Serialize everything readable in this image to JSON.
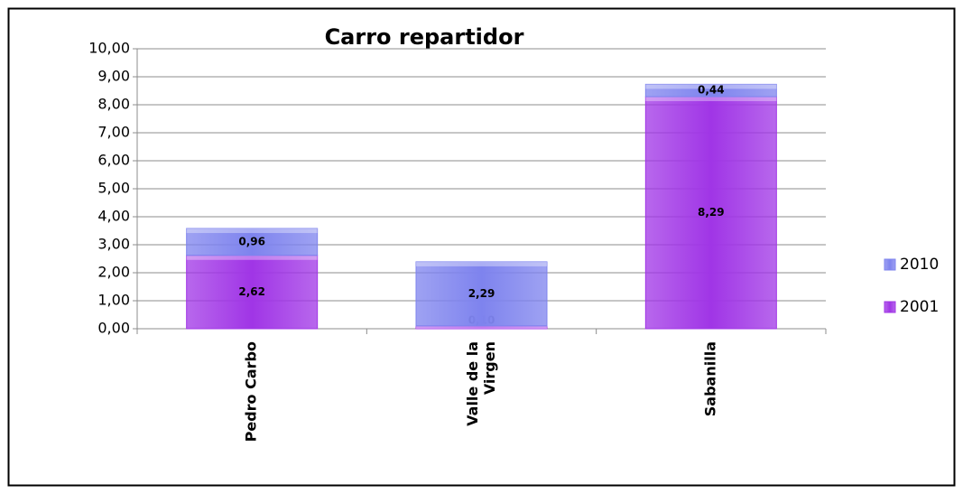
{
  "chart_data": {
    "type": "stacked_bar",
    "title": "Carro repartidor",
    "categories": [
      "Pedro Carbo",
      "Valle de la Virgen",
      "Sabanilla"
    ],
    "series": [
      {
        "name": "2001",
        "color": "#a035e6",
        "values": [
          2.62,
          0.1,
          8.29
        ],
        "value_labels": [
          "2,62",
          "0,10",
          "8,29"
        ]
      },
      {
        "name": "2010",
        "color": "#7e83ee",
        "values": [
          0.96,
          2.29,
          0.44
        ],
        "value_labels": [
          "0,96",
          "2,29",
          "0,44"
        ]
      }
    ],
    "ylim": [
      0,
      10
    ],
    "yticks": [
      {
        "value": 0,
        "label": "0,00"
      },
      {
        "value": 1,
        "label": "1,00"
      },
      {
        "value": 2,
        "label": "2,00"
      },
      {
        "value": 3,
        "label": "3,00"
      },
      {
        "value": 4,
        "label": "4,00"
      },
      {
        "value": 5,
        "label": "5,00"
      },
      {
        "value": 6,
        "label": "6,00"
      },
      {
        "value": 7,
        "label": "7,00"
      },
      {
        "value": 8,
        "label": "8,00"
      },
      {
        "value": 9,
        "label": "9,00"
      },
      {
        "value": 10,
        "label": "10,00"
      }
    ],
    "grid": true,
    "legend": "right"
  }
}
